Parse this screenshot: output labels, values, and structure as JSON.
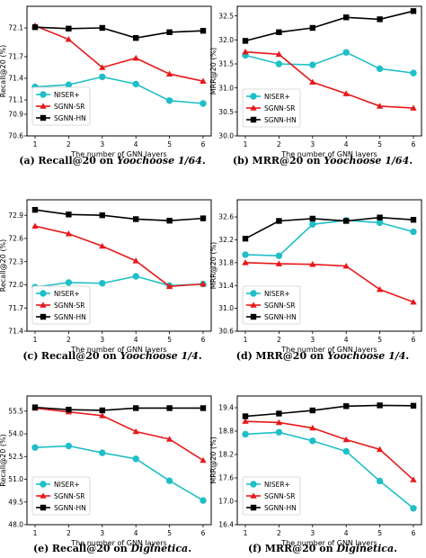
{
  "series_styles": {
    "NISER+": {
      "color": "#1fbfc7",
      "marker": "circle"
    },
    "SGNN-SR": {
      "color": "#e8181a",
      "marker": "triangle"
    },
    "SGNN-HN": {
      "color": "#000000",
      "marker": "square"
    }
  },
  "chart_data": [
    {
      "type": "line",
      "xlabel": "The number of GNN layers",
      "ylabel": "Recall@20 (%)",
      "x": [
        1,
        2,
        3,
        4,
        5,
        6
      ],
      "xticks": [
        "1",
        "2",
        "3",
        "4",
        "5",
        "6"
      ],
      "ylim": [
        70.6,
        72.4
      ],
      "yticks": [
        "70.6",
        "70.9",
        "71.1",
        "71.4",
        "71.7",
        "72.1"
      ],
      "grid": false,
      "legend": "bottom-left",
      "series": [
        {
          "name": "NISER+",
          "values": [
            71.28,
            71.31,
            71.42,
            71.32,
            71.09,
            71.05
          ]
        },
        {
          "name": "SGNN-SR",
          "values": [
            72.13,
            71.94,
            71.55,
            71.68,
            71.46,
            71.36
          ]
        },
        {
          "name": "SGNN-HN",
          "values": [
            72.11,
            72.09,
            72.1,
            71.96,
            72.04,
            72.06
          ]
        }
      ]
    },
    {
      "type": "line",
      "xlabel": "The number of GNN layers",
      "ylabel": "MRR@20 (%)",
      "x": [
        1,
        2,
        3,
        4,
        5,
        6
      ],
      "xticks": [
        "1",
        "2",
        "3",
        "4",
        "5",
        "6"
      ],
      "ylim": [
        30.0,
        32.7
      ],
      "yticks": [
        "30.0",
        "30.5",
        "31.0",
        "31.5",
        "32.0",
        "32.5"
      ],
      "grid": false,
      "legend": "bottom-left",
      "series": [
        {
          "name": "NISER+",
          "values": [
            31.68,
            31.5,
            31.48,
            31.74,
            31.4,
            31.31
          ]
        },
        {
          "name": "SGNN-SR",
          "values": [
            31.75,
            31.7,
            31.12,
            30.88,
            30.62,
            30.58
          ]
        },
        {
          "name": "SGNN-HN",
          "values": [
            31.98,
            32.16,
            32.25,
            32.47,
            32.43,
            32.6
          ]
        }
      ]
    },
    {
      "type": "line",
      "xlabel": "The number of GNN layers",
      "ylabel": "Recall@20 (%)",
      "x": [
        1,
        2,
        3,
        4,
        5,
        6
      ],
      "xticks": [
        "1",
        "2",
        "3",
        "4",
        "5",
        "6"
      ],
      "ylim": [
        71.4,
        73.1
      ],
      "yticks": [
        "71.4",
        "71.7",
        "72.0",
        "72.3",
        "72.6",
        "72.9"
      ],
      "grid": false,
      "legend": "bottom-left",
      "series": [
        {
          "name": "NISER+",
          "values": [
            71.97,
            72.03,
            72.02,
            72.11,
            71.99,
            72.01
          ]
        },
        {
          "name": "SGNN-SR",
          "values": [
            72.76,
            72.66,
            72.5,
            72.31,
            71.98,
            72.01
          ]
        },
        {
          "name": "SGNN-HN",
          "values": [
            72.97,
            72.91,
            72.9,
            72.85,
            72.83,
            72.86
          ]
        }
      ]
    },
    {
      "type": "line",
      "xlabel": "The number of GNN layers",
      "ylabel": "MRR@20 (%)",
      "x": [
        1,
        2,
        3,
        4,
        5,
        6
      ],
      "xticks": [
        "1",
        "2",
        "3",
        "4",
        "5",
        "6"
      ],
      "ylim": [
        30.6,
        32.9
      ],
      "yticks": [
        "30.6",
        "31.0",
        "31.4",
        "31.8",
        "32.2",
        "32.6"
      ],
      "grid": false,
      "legend": "bottom-left",
      "series": [
        {
          "name": "NISER+",
          "values": [
            31.94,
            31.92,
            32.47,
            32.54,
            32.5,
            32.34
          ]
        },
        {
          "name": "SGNN-SR",
          "values": [
            31.8,
            31.78,
            31.77,
            31.74,
            31.33,
            31.11
          ]
        },
        {
          "name": "SGNN-HN",
          "values": [
            32.22,
            32.53,
            32.57,
            32.53,
            32.59,
            32.55
          ]
        }
      ]
    },
    {
      "type": "line",
      "xlabel": "The number of GNN layers",
      "ylabel": "Recall@20 (%)",
      "x": [
        1,
        2,
        3,
        4,
        5,
        6
      ],
      "xticks": [
        "1",
        "2",
        "3",
        "4",
        "5",
        "6"
      ],
      "ylim": [
        48.0,
        56.5
      ],
      "yticks": [
        "48.0",
        "49.5",
        "51.0",
        "52.5",
        "54.0",
        "55.5"
      ],
      "grid": false,
      "legend": "bottom-left",
      "series": [
        {
          "name": "NISER+",
          "values": [
            53.1,
            53.2,
            52.75,
            52.35,
            50.9,
            49.6
          ]
        },
        {
          "name": "SGNN-SR",
          "values": [
            55.7,
            55.45,
            55.2,
            54.15,
            53.65,
            52.25
          ]
        },
        {
          "name": "SGNN-HN",
          "values": [
            55.75,
            55.6,
            55.55,
            55.7,
            55.7,
            55.7
          ]
        }
      ]
    },
    {
      "type": "line",
      "xlabel": "The number of GNN layers",
      "ylabel": "MRR@20 (%)",
      "x": [
        1,
        2,
        3,
        4,
        5,
        6
      ],
      "xticks": [
        "1",
        "2",
        "3",
        "4",
        "5",
        "6"
      ],
      "ylim": [
        16.4,
        19.7
      ],
      "yticks": [
        "16.4",
        "17.0",
        "17.6",
        "18.2",
        "18.8",
        "19.4"
      ],
      "grid": false,
      "legend": "bottom-left",
      "series": [
        {
          "name": "NISER+",
          "values": [
            18.72,
            18.77,
            18.55,
            18.28,
            17.52,
            16.82
          ]
        },
        {
          "name": "SGNN-SR",
          "values": [
            19.05,
            19.02,
            18.88,
            18.58,
            18.33,
            17.55
          ]
        },
        {
          "name": "SGNN-HN",
          "values": [
            19.18,
            19.25,
            19.33,
            19.44,
            19.46,
            19.45
          ]
        }
      ]
    }
  ],
  "captions": [
    {
      "label": "(a)",
      "text": "Recall@20 on ",
      "dataset": "Yoochoose 1/64",
      "end": "."
    },
    {
      "label": "(b)",
      "text": "MRR@20 on ",
      "dataset": "Yoochoose 1/64",
      "end": "."
    },
    {
      "label": "(c)",
      "text": "Recall@20 on ",
      "dataset": "Yoochoose 1/4",
      "end": "."
    },
    {
      "label": "(d)",
      "text": "MRR@20 on ",
      "dataset": "Yoochoose 1/4",
      "end": "."
    },
    {
      "label": "(e)",
      "text": "Recall@20 on ",
      "dataset": "Diginetica",
      "end": "."
    },
    {
      "label": "(f)",
      "text": "MRR@20 on ",
      "dataset": "Diginetica",
      "end": "."
    }
  ]
}
